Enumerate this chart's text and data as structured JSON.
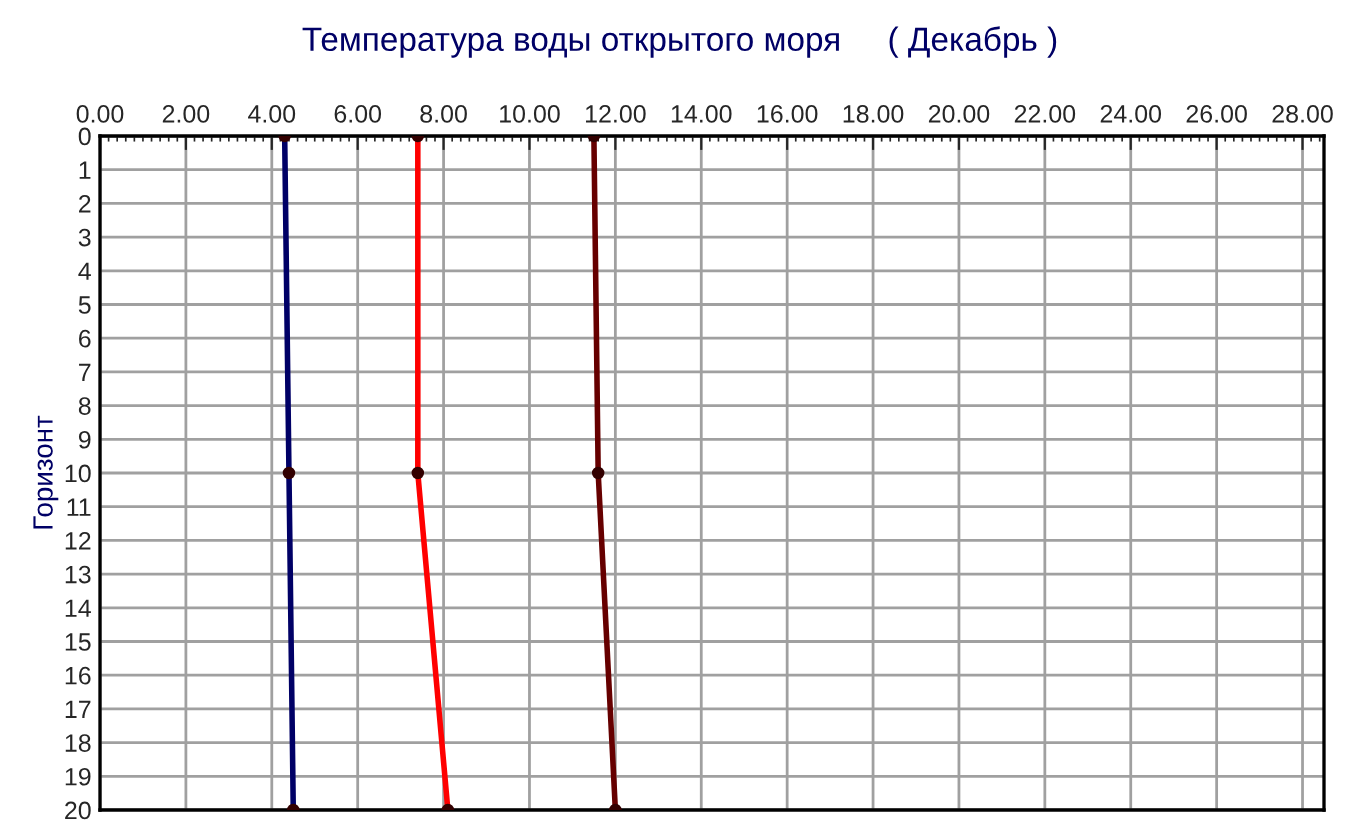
{
  "chart_data": {
    "type": "line",
    "title": "Температура воды открытого моря     ( Декабрь )",
    "ylabel": "Горизонт",
    "series": [
      {
        "color": "#000066",
        "x": [
          4.3,
          4.4,
          4.5
        ],
        "values": [
          0,
          10,
          20
        ]
      },
      {
        "color": "#ff0000",
        "x": [
          7.4,
          7.4,
          8.1
        ],
        "values": [
          0,
          10,
          20
        ]
      },
      {
        "color": "#660000",
        "x": [
          11.5,
          11.6,
          12.0
        ],
        "values": [
          0,
          10,
          20
        ]
      }
    ],
    "xlim": [
      0,
      28.5
    ],
    "xticks": [
      {
        "value": 0,
        "label": "0.00"
      },
      {
        "value": 2,
        "label": "2.00"
      },
      {
        "value": 4,
        "label": "4.00"
      },
      {
        "value": 6,
        "label": "6.00"
      },
      {
        "value": 8,
        "label": "8.00"
      },
      {
        "value": 10,
        "label": "10.00"
      },
      {
        "value": 12,
        "label": "12.00"
      },
      {
        "value": 14,
        "label": "14.00"
      },
      {
        "value": 16,
        "label": "16.00"
      },
      {
        "value": 18,
        "label": "18.00"
      },
      {
        "value": 20,
        "label": "20.00"
      },
      {
        "value": 22,
        "label": "22.00"
      },
      {
        "value": 24,
        "label": "24.00"
      },
      {
        "value": 26,
        "label": "26.00"
      },
      {
        "value": 28,
        "label": "28.00"
      }
    ],
    "ylim": [
      20,
      0
    ],
    "yticks": [
      0,
      1,
      2,
      3,
      4,
      5,
      6,
      7,
      8,
      9,
      10,
      11,
      12,
      13,
      14,
      15,
      16,
      17,
      18,
      19,
      20
    ],
    "grid": true,
    "marker": "circle",
    "line_style": "solid"
  }
}
